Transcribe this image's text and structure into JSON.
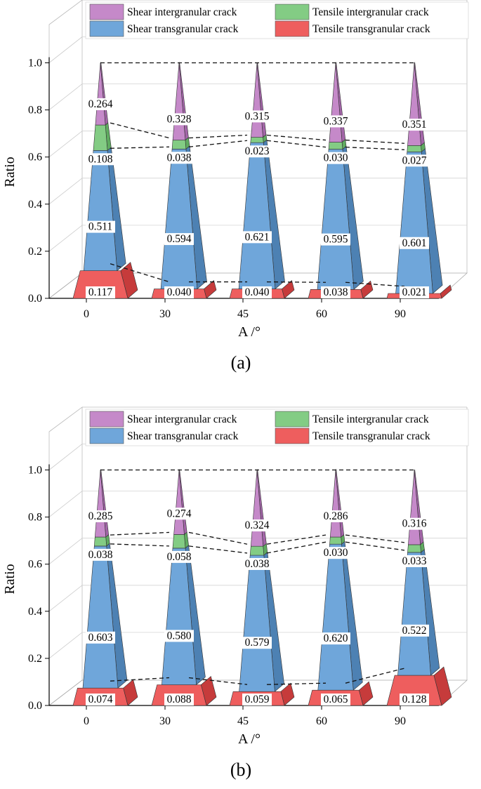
{
  "figure": {
    "captions": [
      "(a)",
      "(b)"
    ]
  },
  "colors": {
    "shear_intergranular": "#c589c9",
    "tensile_intergranular": "#83cc84",
    "shear_transgranular": "#6fa6da",
    "tensile_transgranular": "#ee5e5e"
  },
  "chart_data": [
    {
      "type": "bar",
      "subtype": "3d-stacked-pyramid",
      "panel": "(a)",
      "title": "",
      "xlabel": "A /°",
      "ylabel": "Ratio",
      "categories": [
        "0",
        "30",
        "45",
        "60",
        "90"
      ],
      "y_ticks": [
        "0.0",
        "0.2",
        "0.4",
        "0.6",
        "0.8",
        "1.0"
      ],
      "ylim": [
        0,
        1.0
      ],
      "grid": true,
      "legend_position": "top",
      "series": [
        {
          "name": "Tensile transgranular crack",
          "key": "tensile_transgranular",
          "values": [
            0.117,
            0.04,
            0.04,
            0.038,
            0.021
          ],
          "labels": [
            "0.117",
            "0.040",
            "0.040",
            "0.038",
            "0.021"
          ]
        },
        {
          "name": "Shear transgranular crack",
          "key": "shear_transgranular",
          "values": [
            0.511,
            0.594,
            0.621,
            0.595,
            0.601
          ],
          "labels": [
            "0.511",
            "0.594",
            "0.621",
            "0.595",
            "0.601"
          ]
        },
        {
          "name": "Tensile intergranular crack",
          "key": "tensile_intergranular",
          "values": [
            0.108,
            0.038,
            0.023,
            0.03,
            0.027
          ],
          "labels": [
            "0.108",
            "0.038",
            "0.023",
            "0.030",
            "0.027"
          ]
        },
        {
          "name": "Shear intergranular crack",
          "key": "shear_intergranular",
          "values": [
            0.264,
            0.328,
            0.315,
            0.337,
            0.351
          ],
          "labels": [
            "0.264",
            "0.328",
            "0.315",
            "0.337",
            "0.351"
          ]
        }
      ]
    },
    {
      "type": "bar",
      "subtype": "3d-stacked-pyramid",
      "panel": "(b)",
      "title": "",
      "xlabel": "A /°",
      "ylabel": "Ratio",
      "categories": [
        "0",
        "30",
        "45",
        "60",
        "90"
      ],
      "y_ticks": [
        "0.0",
        "0.2",
        "0.4",
        "0.6",
        "0.8",
        "1.0"
      ],
      "ylim": [
        0,
        1.0
      ],
      "grid": true,
      "legend_position": "top",
      "series": [
        {
          "name": "Tensile transgranular crack",
          "key": "tensile_transgranular",
          "values": [
            0.074,
            0.088,
            0.059,
            0.065,
            0.128
          ],
          "labels": [
            "0.074",
            "0.088",
            "0.059",
            "0.065",
            "0.128"
          ]
        },
        {
          "name": "Shear transgranular crack",
          "key": "shear_transgranular",
          "values": [
            0.603,
            0.58,
            0.579,
            0.62,
            0.522
          ],
          "labels": [
            "0.603",
            "0.580",
            "0.579",
            "0.620",
            "0.522"
          ]
        },
        {
          "name": "Tensile intergranular crack",
          "key": "tensile_intergranular",
          "values": [
            0.038,
            0.058,
            0.038,
            0.03,
            0.033
          ],
          "labels": [
            "0.038",
            "0.058",
            "0.038",
            "0.030",
            "0.033"
          ]
        },
        {
          "name": "Shear intergranular crack",
          "key": "shear_intergranular",
          "values": [
            0.285,
            0.274,
            0.324,
            0.286,
            0.316
          ],
          "labels": [
            "0.285",
            "0.274",
            "0.324",
            "0.286",
            "0.316"
          ]
        }
      ]
    }
  ]
}
